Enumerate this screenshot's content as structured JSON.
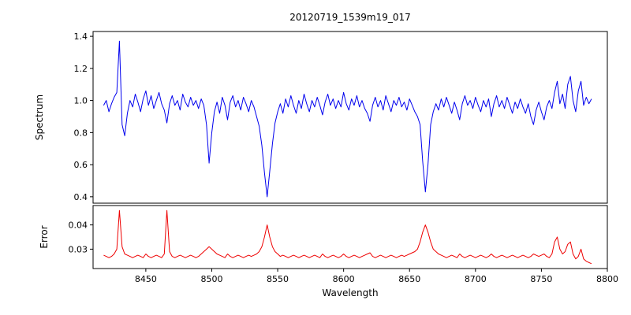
{
  "chart_data": {
    "type": "line",
    "title": "20120719_1539m19_017",
    "xlabel": "Wavelength",
    "xlim": [
      8410,
      8800
    ],
    "x_ticks": [
      8450,
      8500,
      8550,
      8600,
      8650,
      8700,
      8750,
      8800
    ],
    "x_tick_labels": [
      "8450",
      "8500",
      "8550",
      "8600",
      "8650",
      "8700",
      "8750",
      "8800"
    ],
    "grid": false,
    "legend": "none",
    "x": [
      8418,
      8420,
      8422,
      8424,
      8426,
      8428,
      8430,
      8432,
      8434,
      8436,
      8438,
      8440,
      8442,
      8444,
      8446,
      8448,
      8450,
      8452,
      8454,
      8456,
      8458,
      8460,
      8462,
      8464,
      8466,
      8468,
      8470,
      8472,
      8474,
      8476,
      8478,
      8480,
      8482,
      8484,
      8486,
      8488,
      8490,
      8492,
      8494,
      8496,
      8498,
      8500,
      8502,
      8504,
      8506,
      8508,
      8510,
      8512,
      8514,
      8516,
      8518,
      8520,
      8522,
      8524,
      8526,
      8528,
      8530,
      8532,
      8534,
      8536,
      8538,
      8540,
      8542,
      8544,
      8546,
      8548,
      8550,
      8552,
      8554,
      8556,
      8558,
      8560,
      8562,
      8564,
      8566,
      8568,
      8570,
      8572,
      8574,
      8576,
      8578,
      8580,
      8582,
      8584,
      8586,
      8588,
      8590,
      8592,
      8594,
      8596,
      8598,
      8600,
      8602,
      8604,
      8606,
      8608,
      8610,
      8612,
      8614,
      8616,
      8618,
      8620,
      8622,
      8624,
      8626,
      8628,
      8630,
      8632,
      8634,
      8636,
      8638,
      8640,
      8642,
      8644,
      8646,
      8648,
      8650,
      8652,
      8654,
      8656,
      8658,
      8660,
      8662,
      8664,
      8666,
      8668,
      8670,
      8672,
      8674,
      8676,
      8678,
      8680,
      8682,
      8684,
      8686,
      8688,
      8690,
      8692,
      8694,
      8696,
      8698,
      8700,
      8702,
      8704,
      8706,
      8708,
      8710,
      8712,
      8714,
      8716,
      8718,
      8720,
      8722,
      8724,
      8726,
      8728,
      8730,
      8732,
      8734,
      8736,
      8738,
      8740,
      8742,
      8744,
      8746,
      8748,
      8750,
      8752,
      8754,
      8756,
      8758,
      8760,
      8762,
      8764,
      8766,
      8768,
      8770,
      8772,
      8774,
      8776,
      8778,
      8780,
      8782,
      8784,
      8786,
      8788
    ],
    "panels": [
      {
        "name": "spectrum",
        "ylabel": "Spectrum",
        "color": "#0000ee",
        "ylim": [
          0.36,
          1.43
        ],
        "y_ticks": [
          0.4,
          0.6,
          0.8,
          1.0,
          1.2,
          1.4
        ],
        "y_tick_labels": [
          "0.4",
          "0.6",
          "0.8",
          "1.0",
          "1.2",
          "1.4"
        ],
        "values": [
          0.97,
          1.0,
          0.93,
          0.98,
          1.02,
          1.05,
          1.37,
          0.85,
          0.78,
          0.92,
          1.0,
          0.96,
          1.04,
          0.99,
          0.93,
          1.01,
          1.06,
          0.97,
          1.03,
          0.95,
          1.0,
          1.05,
          0.98,
          0.94,
          0.86,
          0.98,
          1.03,
          0.97,
          1.0,
          0.94,
          1.04,
          0.99,
          0.96,
          1.02,
          0.97,
          1.0,
          0.95,
          1.01,
          0.97,
          0.85,
          0.61,
          0.8,
          0.93,
          0.99,
          0.92,
          1.02,
          0.97,
          0.88,
          0.99,
          1.03,
          0.96,
          1.0,
          0.94,
          1.02,
          0.98,
          0.93,
          1.0,
          0.96,
          0.9,
          0.84,
          0.72,
          0.55,
          0.4,
          0.56,
          0.73,
          0.86,
          0.93,
          0.98,
          0.92,
          1.01,
          0.96,
          1.03,
          0.97,
          0.92,
          1.0,
          0.95,
          1.04,
          0.98,
          0.93,
          1.0,
          0.96,
          1.02,
          0.97,
          0.91,
          0.99,
          1.04,
          0.97,
          1.01,
          0.95,
          1.0,
          0.96,
          1.05,
          0.98,
          0.94,
          1.01,
          0.97,
          1.03,
          0.96,
          1.0,
          0.95,
          0.92,
          0.87,
          0.97,
          1.02,
          0.96,
          1.0,
          0.94,
          1.03,
          0.98,
          0.93,
          1.0,
          0.97,
          1.02,
          0.96,
          0.99,
          0.94,
          1.01,
          0.97,
          0.93,
          0.9,
          0.85,
          0.62,
          0.43,
          0.6,
          0.85,
          0.93,
          0.98,
          0.94,
          1.01,
          0.96,
          1.02,
          0.97,
          0.92,
          0.99,
          0.94,
          0.88,
          0.98,
          1.03,
          0.97,
          1.0,
          0.95,
          1.02,
          0.97,
          0.93,
          1.0,
          0.96,
          1.01,
          0.9,
          0.98,
          1.03,
          0.96,
          1.0,
          0.95,
          1.02,
          0.97,
          0.92,
          0.99,
          0.95,
          1.01,
          0.96,
          0.92,
          0.98,
          0.9,
          0.85,
          0.94,
          0.99,
          0.93,
          0.88,
          0.96,
          1.0,
          0.95,
          1.05,
          1.12,
          0.98,
          1.04,
          0.95,
          1.1,
          1.15,
          1.0,
          0.93,
          1.06,
          1.12,
          0.97,
          1.02,
          0.98,
          1.01
        ]
      },
      {
        "name": "error",
        "ylabel": "Error",
        "color": "#ee0000",
        "ylim": [
          0.022,
          0.048
        ],
        "y_ticks": [
          0.03,
          0.04
        ],
        "y_tick_labels": [
          "0.03",
          "0.04"
        ],
        "values": [
          0.0275,
          0.027,
          0.0265,
          0.027,
          0.028,
          0.03,
          0.046,
          0.031,
          0.028,
          0.0275,
          0.027,
          0.0265,
          0.027,
          0.0275,
          0.027,
          0.0265,
          0.028,
          0.027,
          0.0265,
          0.027,
          0.0275,
          0.027,
          0.0265,
          0.028,
          0.046,
          0.029,
          0.027,
          0.0265,
          0.027,
          0.0275,
          0.027,
          0.0265,
          0.027,
          0.0275,
          0.027,
          0.0265,
          0.027,
          0.028,
          0.029,
          0.03,
          0.031,
          0.03,
          0.029,
          0.028,
          0.0275,
          0.027,
          0.0265,
          0.028,
          0.027,
          0.0265,
          0.027,
          0.0275,
          0.027,
          0.0265,
          0.027,
          0.0275,
          0.027,
          0.0275,
          0.028,
          0.029,
          0.031,
          0.035,
          0.04,
          0.035,
          0.031,
          0.029,
          0.028,
          0.027,
          0.0275,
          0.027,
          0.0265,
          0.027,
          0.0275,
          0.027,
          0.0265,
          0.027,
          0.0275,
          0.027,
          0.0265,
          0.027,
          0.0275,
          0.027,
          0.0265,
          0.028,
          0.027,
          0.0265,
          0.027,
          0.0275,
          0.027,
          0.0265,
          0.027,
          0.028,
          0.027,
          0.0265,
          0.027,
          0.0275,
          0.027,
          0.0265,
          0.027,
          0.0275,
          0.028,
          0.0285,
          0.027,
          0.0265,
          0.027,
          0.0275,
          0.027,
          0.0265,
          0.027,
          0.0275,
          0.027,
          0.0265,
          0.027,
          0.0275,
          0.027,
          0.0275,
          0.028,
          0.0285,
          0.029,
          0.03,
          0.033,
          0.037,
          0.04,
          0.037,
          0.033,
          0.03,
          0.029,
          0.028,
          0.0275,
          0.027,
          0.0265,
          0.027,
          0.0275,
          0.027,
          0.0265,
          0.028,
          0.027,
          0.0265,
          0.027,
          0.0275,
          0.027,
          0.0265,
          0.027,
          0.0275,
          0.027,
          0.0265,
          0.027,
          0.028,
          0.027,
          0.0265,
          0.027,
          0.0275,
          0.027,
          0.0265,
          0.027,
          0.0275,
          0.027,
          0.0265,
          0.027,
          0.0275,
          0.027,
          0.0265,
          0.027,
          0.028,
          0.0275,
          0.027,
          0.0275,
          0.028,
          0.027,
          0.0265,
          0.028,
          0.033,
          0.035,
          0.03,
          0.028,
          0.029,
          0.032,
          0.033,
          0.028,
          0.026,
          0.027,
          0.03,
          0.026,
          0.025,
          0.0245,
          0.024
        ]
      }
    ]
  }
}
